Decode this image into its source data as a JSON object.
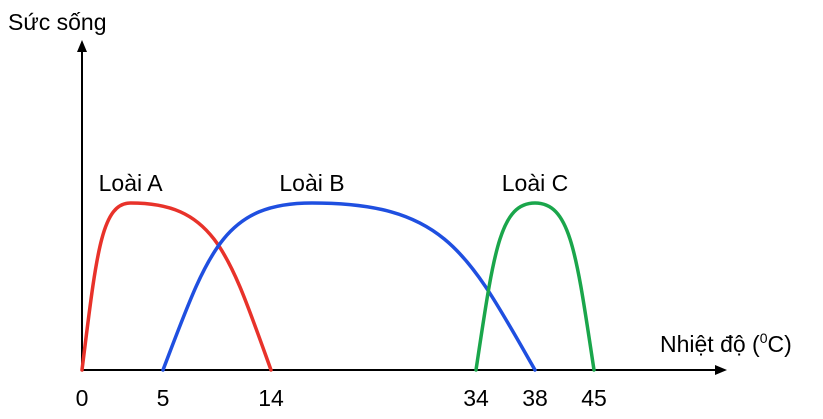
{
  "chart_data": {
    "type": "line",
    "title": "",
    "ylabel": "Sức sống",
    "xlabel_main": "Nhiệt độ (",
    "xlabel_sup": "0",
    "xlabel_end": "C)",
    "x_ticks": [
      "0",
      "5",
      "14",
      "34",
      "38",
      "45"
    ],
    "y_ticks": [],
    "grid": false,
    "legend": "none",
    "series": [
      {
        "name": "Loài A",
        "color": "#e8322a",
        "x": [
          0,
          3,
          14
        ],
        "y": [
          0,
          1,
          0
        ]
      },
      {
        "name": "Loài B",
        "color": "#1f4fe0",
        "x": [
          5,
          18,
          38
        ],
        "y": [
          0,
          1,
          0
        ]
      },
      {
        "name": "Loài C",
        "color": "#1aa64b",
        "x": [
          34,
          38,
          45
        ],
        "y": [
          0,
          1,
          0
        ]
      }
    ]
  }
}
